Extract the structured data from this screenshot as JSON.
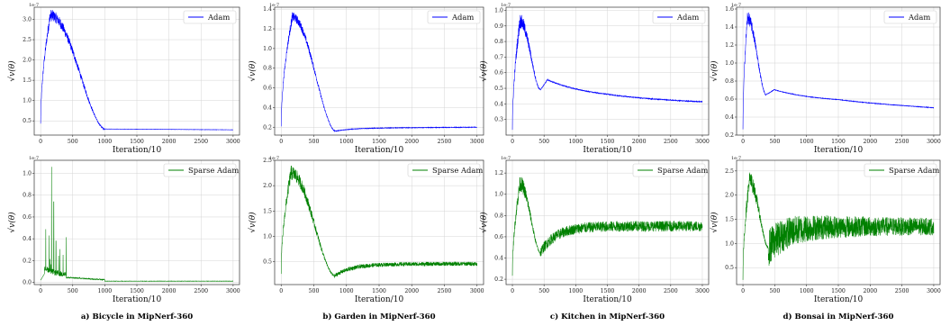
{
  "chart_data": [
    {
      "type": "line",
      "panel": "a",
      "series": [
        {
          "name": "Adam",
          "color": "#0000ff"
        }
      ],
      "xlabel": "Iteration/10",
      "ylabel": "√v(θ)",
      "exponent": "1e-7",
      "xlim": [
        -100,
        3100
      ],
      "xticks": [
        0,
        500,
        1000,
        1500,
        2000,
        2500,
        3000
      ],
      "ylim": [
        0.15,
        3.3
      ],
      "yticks": [
        0.5,
        1.0,
        1.5,
        2.0,
        2.5,
        3.0
      ],
      "ytick_labels": [
        "0.5",
        "1.0",
        "1.5",
        "2.0",
        "2.5",
        "3.0"
      ],
      "profile": {
        "start": 0.42,
        "peak_x": 150,
        "peak": 3.1,
        "noise": 0.15,
        "decay_to": 0.3,
        "decay_end": 1000,
        "mid": 500,
        "mid_val": 1.5,
        "late": 0.3,
        "end": 0.28
      },
      "legend": "top-right",
      "grid": true
    },
    {
      "type": "line",
      "panel": "b",
      "series": [
        {
          "name": "Adam",
          "color": "#0000ff"
        }
      ],
      "xlabel": "Iteration/10",
      "ylabel": "√v(θ)",
      "exponent": "1e-7",
      "xlim": [
        -100,
        3100
      ],
      "xticks": [
        0,
        500,
        1000,
        1500,
        2000,
        2500,
        3000
      ],
      "ylim": [
        0.12,
        1.42
      ],
      "yticks": [
        0.2,
        0.4,
        0.6,
        0.8,
        1.0,
        1.2,
        1.4
      ],
      "ytick_labels": [
        "0.2",
        "0.4",
        "0.6",
        "0.8",
        "1.0",
        "1.2",
        "1.4"
      ],
      "profile": {
        "start": 0.2,
        "peak_x": 170,
        "peak": 1.32,
        "noise": 0.05,
        "decay_to": 0.16,
        "decay_end": 830,
        "mid": 500,
        "mid_val": 0.55,
        "late": 0.19,
        "end": 0.2
      },
      "legend": "top-right",
      "grid": true
    },
    {
      "type": "line",
      "panel": "c",
      "series": [
        {
          "name": "Adam",
          "color": "#0000ff"
        }
      ],
      "xlabel": "Iteration/10",
      "ylabel": "√v(θ)",
      "exponent": "1e-7",
      "xlim": [
        -100,
        3100
      ],
      "xticks": [
        0,
        500,
        1000,
        1500,
        2000,
        2500,
        3000
      ],
      "ylim": [
        0.2,
        1.02
      ],
      "yticks": [
        0.3,
        0.4,
        0.5,
        0.6,
        0.7,
        0.8,
        0.9,
        1.0
      ],
      "ytick_labels": [
        "0.3",
        "0.4",
        "0.5",
        "0.6",
        "0.7",
        "0.8",
        "0.9",
        "1.0"
      ],
      "profile": {
        "start": 0.24,
        "peak_x": 120,
        "peak": 0.93,
        "noise": 0.05,
        "decay_to": 0.49,
        "decay_end": 440,
        "bump_x": 560,
        "bump": 0.56,
        "mid_val": 0.5,
        "late": 0.43,
        "end": 0.41
      },
      "legend": "top-right",
      "grid": true
    },
    {
      "type": "line",
      "panel": "d",
      "series": [
        {
          "name": "Adam",
          "color": "#0000ff"
        }
      ],
      "xlabel": "Iteration/10",
      "ylabel": "√v(θ)",
      "exponent": "1e-7",
      "xlim": [
        -100,
        3100
      ],
      "xticks": [
        0,
        500,
        1000,
        1500,
        2000,
        2500,
        3000
      ],
      "ylim": [
        0.2,
        1.62
      ],
      "yticks": [
        0.2,
        0.4,
        0.6,
        0.8,
        1.0,
        1.2,
        1.4,
        1.6
      ],
      "ytick_labels": [
        "0.2",
        "0.4",
        "0.6",
        "0.8",
        "1.0",
        "1.2",
        "1.4",
        "1.6"
      ],
      "profile": {
        "start": 0.26,
        "peak_x": 70,
        "peak": 1.5,
        "noise": 0.08,
        "decay_to": 0.65,
        "decay_end": 360,
        "bump_x": 500,
        "bump": 0.71,
        "mid_val": 0.9,
        "late": 0.56,
        "end": 0.5
      },
      "legend": "top-right",
      "grid": true
    },
    {
      "type": "line",
      "panel": "a",
      "series": [
        {
          "name": "Sparse Adam",
          "color": "#008000"
        }
      ],
      "xlabel": "Iteration/10",
      "ylabel": "√v(θ)",
      "exponent": "1e-7",
      "xlim": [
        -100,
        3100
      ],
      "xticks": [
        0,
        500,
        1000,
        1500,
        2000,
        2500,
        3000
      ],
      "ylim": [
        -0.02,
        1.12
      ],
      "yticks": [
        0.0,
        0.2,
        0.4,
        0.6,
        0.8,
        1.0
      ],
      "ytick_labels": [
        "0.0",
        "0.2",
        "0.4",
        "0.6",
        "0.8",
        "1.0"
      ],
      "profile": {
        "spiky": true,
        "spike": 1.06,
        "spike_x": 170,
        "base": 0.02,
        "end": 0.01
      },
      "legend": "top-right",
      "grid": true
    },
    {
      "type": "line",
      "panel": "b",
      "series": [
        {
          "name": "Sparse Adam",
          "color": "#008000"
        }
      ],
      "xlabel": "Iteration/10",
      "ylabel": "√v(θ)",
      "exponent": "1e-7",
      "xlim": [
        -100,
        3100
      ],
      "xticks": [
        0,
        500,
        1000,
        1500,
        2000,
        2500,
        3000
      ],
      "ylim": [
        0.05,
        2.5
      ],
      "yticks": [
        0.5,
        1.0,
        1.5,
        2.0,
        2.5
      ],
      "ytick_labels": [
        "0.5",
        "1.0",
        "1.5",
        "2.0",
        "2.5"
      ],
      "profile": {
        "start": 0.3,
        "peak_x": 150,
        "peak": 2.25,
        "noise": 0.15,
        "decay_to": 0.22,
        "decay_end": 820,
        "mid": 500,
        "mid_val": 0.9,
        "late": 0.45,
        "end": 0.46,
        "late_noise": 0.04
      },
      "legend": "top-right",
      "grid": true
    },
    {
      "type": "line",
      "panel": "c",
      "series": [
        {
          "name": "Sparse Adam",
          "color": "#008000"
        }
      ],
      "xlabel": "Iteration/10",
      "ylabel": "√v(θ)",
      "exponent": "1e-7",
      "xlim": [
        -100,
        3100
      ],
      "xticks": [
        0,
        500,
        1000,
        1500,
        2000,
        2500,
        3000
      ],
      "ylim": [
        0.15,
        1.32
      ],
      "yticks": [
        0.2,
        0.4,
        0.6,
        0.8,
        1.0,
        1.2
      ],
      "ytick_labels": [
        "0.2",
        "0.4",
        "0.6",
        "0.8",
        "1.0",
        "1.2"
      ],
      "profile": {
        "start": 0.25,
        "peak_x": 120,
        "peak": 1.1,
        "noise": 0.08,
        "decay_to": 0.45,
        "decay_end": 440,
        "mid": 300,
        "mid_val": 0.7,
        "late": 0.7,
        "end": 0.7,
        "late_noise": 0.05
      },
      "legend": "top-right",
      "grid": true
    },
    {
      "type": "line",
      "panel": "d",
      "series": [
        {
          "name": "Sparse Adam",
          "color": "#008000"
        }
      ],
      "xlabel": "Iteration/10",
      "ylabel": "√v(θ)",
      "exponent": "1e-7",
      "xlim": [
        -100,
        3100
      ],
      "xticks": [
        0,
        500,
        1000,
        1500,
        2000,
        2500,
        3000
      ],
      "ylim": [
        0.15,
        2.72
      ],
      "yticks": [
        0.5,
        1.0,
        1.5,
        2.0,
        2.5
      ],
      "ytick_labels": [
        "0.5",
        "1.0",
        "1.5",
        "2.0",
        "2.5"
      ],
      "profile": {
        "start": 0.3,
        "peak_x": 100,
        "peak": 2.3,
        "noise": 0.2,
        "decay_to": 0.9,
        "decay_end": 400,
        "mid": 250,
        "mid_val": 1.4,
        "late": 1.35,
        "end": 1.35,
        "late_noise": 0.28,
        "wide": true
      },
      "legend": "top-right",
      "grid": true
    }
  ],
  "captions": {
    "a": "a) Bicycle in MipNerf-360",
    "b": "b) Garden in MipNerf-360",
    "c": "c) Kitchen in MipNerf-360",
    "d": "d) Bonsai in MipNerf-360"
  }
}
